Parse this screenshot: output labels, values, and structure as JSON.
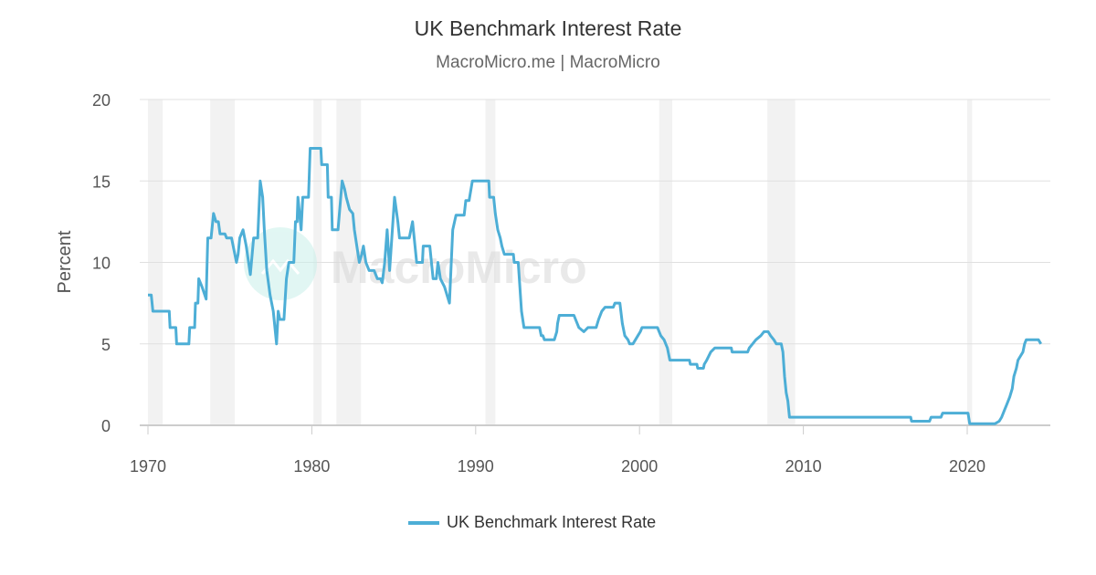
{
  "chart_data": {
    "type": "line",
    "title": "UK Benchmark Interest Rate",
    "subtitle": "MacroMicro.me | MacroMicro",
    "ylabel": "Percent",
    "xlabel": "",
    "xlim": [
      1969.5,
      2025
    ],
    "ylim": [
      0,
      20
    ],
    "x_ticks": [
      "1970",
      "1980",
      "1990",
      "2000",
      "2010",
      "2020"
    ],
    "y_ticks": [
      "0",
      "5",
      "10",
      "15",
      "20"
    ],
    "grid": "horizontal",
    "legend": "bottom-center",
    "recession_shading": [
      [
        1970.0,
        1970.9
      ],
      [
        1973.8,
        1975.3
      ],
      [
        1980.1,
        1980.6
      ],
      [
        1981.5,
        1983.0
      ],
      [
        1990.6,
        1991.2
      ],
      [
        2001.2,
        2002.0
      ],
      [
        2007.8,
        2009.5
      ],
      [
        2020.0,
        2020.3
      ]
    ],
    "colors": {
      "series": "#4daed6",
      "recession": "#f2f2f2",
      "grid": "#e0e0e0"
    },
    "watermark": "MacroMicro",
    "series": [
      {
        "name": "UK Benchmark Interest Rate",
        "points": [
          [
            1970.0,
            8
          ],
          [
            1970.2,
            8
          ],
          [
            1970.3,
            7
          ],
          [
            1971.3,
            7
          ],
          [
            1971.35,
            6
          ],
          [
            1971.7,
            6
          ],
          [
            1971.75,
            5
          ],
          [
            1972.5,
            5
          ],
          [
            1972.55,
            6
          ],
          [
            1972.85,
            6
          ],
          [
            1972.9,
            7.5
          ],
          [
            1973.05,
            7.5
          ],
          [
            1973.1,
            9
          ],
          [
            1973.3,
            8.5
          ],
          [
            1973.55,
            7.75
          ],
          [
            1973.65,
            11.5
          ],
          [
            1973.85,
            11.5
          ],
          [
            1974.0,
            13
          ],
          [
            1974.15,
            12.5
          ],
          [
            1974.3,
            12.5
          ],
          [
            1974.4,
            11.75
          ],
          [
            1974.7,
            11.75
          ],
          [
            1974.8,
            11.5
          ],
          [
            1975.1,
            11.5
          ],
          [
            1975.4,
            10
          ],
          [
            1975.5,
            10.5
          ],
          [
            1975.6,
            11.5
          ],
          [
            1975.8,
            12
          ],
          [
            1976.0,
            11
          ],
          [
            1976.25,
            9.25
          ],
          [
            1976.45,
            11.5
          ],
          [
            1976.7,
            11.5
          ],
          [
            1976.85,
            15
          ],
          [
            1977.0,
            14
          ],
          [
            1977.1,
            12
          ],
          [
            1977.25,
            9.5
          ],
          [
            1977.45,
            8
          ],
          [
            1977.65,
            7
          ],
          [
            1977.85,
            5
          ],
          [
            1977.95,
            7
          ],
          [
            1978.05,
            6.5
          ],
          [
            1978.3,
            6.5
          ],
          [
            1978.45,
            9
          ],
          [
            1978.6,
            10
          ],
          [
            1978.9,
            10
          ],
          [
            1979.0,
            12.5
          ],
          [
            1979.1,
            12.5
          ],
          [
            1979.15,
            14
          ],
          [
            1979.35,
            12
          ],
          [
            1979.45,
            14
          ],
          [
            1979.8,
            14
          ],
          [
            1979.9,
            17
          ],
          [
            1980.55,
            17
          ],
          [
            1980.6,
            16
          ],
          [
            1980.95,
            16
          ],
          [
            1981.0,
            14
          ],
          [
            1981.2,
            14
          ],
          [
            1981.25,
            12
          ],
          [
            1981.6,
            12
          ],
          [
            1981.85,
            15
          ],
          [
            1982.0,
            14.5
          ],
          [
            1982.1,
            14
          ],
          [
            1982.3,
            13.25
          ],
          [
            1982.5,
            13
          ],
          [
            1982.6,
            12
          ],
          [
            1982.9,
            10
          ],
          [
            1983.05,
            10.5
          ],
          [
            1983.15,
            11
          ],
          [
            1983.3,
            10
          ],
          [
            1983.5,
            9.5
          ],
          [
            1983.8,
            9.5
          ],
          [
            1984.0,
            9
          ],
          [
            1984.2,
            9
          ],
          [
            1984.3,
            8.75
          ],
          [
            1984.45,
            10
          ],
          [
            1984.6,
            12
          ],
          [
            1984.75,
            9.5
          ],
          [
            1985.05,
            14
          ],
          [
            1985.25,
            12.5
          ],
          [
            1985.35,
            11.5
          ],
          [
            1985.95,
            11.5
          ],
          [
            1986.15,
            12.5
          ],
          [
            1986.3,
            11
          ],
          [
            1986.4,
            10
          ],
          [
            1986.75,
            10
          ],
          [
            1986.8,
            11
          ],
          [
            1987.2,
            11
          ],
          [
            1987.3,
            10
          ],
          [
            1987.4,
            9
          ],
          [
            1987.6,
            9
          ],
          [
            1987.7,
            10
          ],
          [
            1987.85,
            9
          ],
          [
            1988.1,
            8.5
          ],
          [
            1988.4,
            7.5
          ],
          [
            1988.6,
            12
          ],
          [
            1988.8,
            12.9
          ],
          [
            1989.3,
            12.9
          ],
          [
            1989.4,
            13.8
          ],
          [
            1989.6,
            13.8
          ],
          [
            1989.8,
            15
          ],
          [
            1990.8,
            15
          ],
          [
            1990.85,
            14
          ],
          [
            1991.1,
            14
          ],
          [
            1991.2,
            13
          ],
          [
            1991.35,
            12
          ],
          [
            1991.5,
            11.5
          ],
          [
            1991.6,
            11
          ],
          [
            1991.75,
            10.5
          ],
          [
            1992.3,
            10.5
          ],
          [
            1992.35,
            10
          ],
          [
            1992.6,
            10
          ],
          [
            1992.8,
            7
          ],
          [
            1992.95,
            6
          ],
          [
            1993.9,
            6
          ],
          [
            1994.0,
            5.5
          ],
          [
            1994.1,
            5.5
          ],
          [
            1994.2,
            5.25
          ],
          [
            1994.8,
            5.25
          ],
          [
            1994.95,
            5.75
          ],
          [
            1995.0,
            6.25
          ],
          [
            1995.1,
            6.75
          ],
          [
            1996.0,
            6.75
          ],
          [
            1996.1,
            6.5
          ],
          [
            1996.3,
            6
          ],
          [
            1996.6,
            5.75
          ],
          [
            1996.85,
            6
          ],
          [
            1997.35,
            6
          ],
          [
            1997.5,
            6.5
          ],
          [
            1997.7,
            7
          ],
          [
            1997.9,
            7.25
          ],
          [
            1998.4,
            7.25
          ],
          [
            1998.5,
            7.5
          ],
          [
            1998.8,
            7.5
          ],
          [
            1998.95,
            6.25
          ],
          [
            1999.1,
            5.5
          ],
          [
            1999.3,
            5.25
          ],
          [
            1999.4,
            5
          ],
          [
            1999.6,
            5
          ],
          [
            1999.9,
            5.5
          ],
          [
            2000.05,
            5.75
          ],
          [
            2000.15,
            6
          ],
          [
            2001.1,
            6
          ],
          [
            2001.2,
            5.75
          ],
          [
            2001.3,
            5.5
          ],
          [
            2001.5,
            5.25
          ],
          [
            2001.6,
            5
          ],
          [
            2001.7,
            4.75
          ],
          [
            2001.85,
            4
          ],
          [
            2003.05,
            4
          ],
          [
            2003.1,
            3.75
          ],
          [
            2003.5,
            3.75
          ],
          [
            2003.55,
            3.5
          ],
          [
            2003.9,
            3.5
          ],
          [
            2003.95,
            3.75
          ],
          [
            2004.1,
            4
          ],
          [
            2004.35,
            4.5
          ],
          [
            2004.6,
            4.75
          ],
          [
            2005.6,
            4.75
          ],
          [
            2005.65,
            4.5
          ],
          [
            2006.6,
            4.5
          ],
          [
            2006.7,
            4.75
          ],
          [
            2006.9,
            5
          ],
          [
            2007.1,
            5.25
          ],
          [
            2007.4,
            5.5
          ],
          [
            2007.6,
            5.75
          ],
          [
            2007.85,
            5.75
          ],
          [
            2008.0,
            5.5
          ],
          [
            2008.2,
            5.25
          ],
          [
            2008.35,
            5
          ],
          [
            2008.65,
            5
          ],
          [
            2008.75,
            4.5
          ],
          [
            2008.85,
            3
          ],
          [
            2008.95,
            2
          ],
          [
            2009.05,
            1.5
          ],
          [
            2009.15,
            0.5
          ],
          [
            2016.55,
            0.5
          ],
          [
            2016.6,
            0.25
          ],
          [
            2017.7,
            0.25
          ],
          [
            2017.8,
            0.5
          ],
          [
            2018.4,
            0.5
          ],
          [
            2018.5,
            0.75
          ],
          [
            2020.05,
            0.75
          ],
          [
            2020.15,
            0.1
          ],
          [
            2021.7,
            0.1
          ],
          [
            2021.95,
            0.25
          ],
          [
            2022.1,
            0.5
          ],
          [
            2022.2,
            0.75
          ],
          [
            2022.3,
            1
          ],
          [
            2022.4,
            1.25
          ],
          [
            2022.6,
            1.75
          ],
          [
            2022.75,
            2.25
          ],
          [
            2022.85,
            3
          ],
          [
            2023.0,
            3.5
          ],
          [
            2023.1,
            4
          ],
          [
            2023.25,
            4.25
          ],
          [
            2023.4,
            4.5
          ],
          [
            2023.5,
            5
          ],
          [
            2023.6,
            5.25
          ],
          [
            2024.35,
            5.25
          ],
          [
            2024.5,
            5
          ]
        ]
      }
    ]
  }
}
